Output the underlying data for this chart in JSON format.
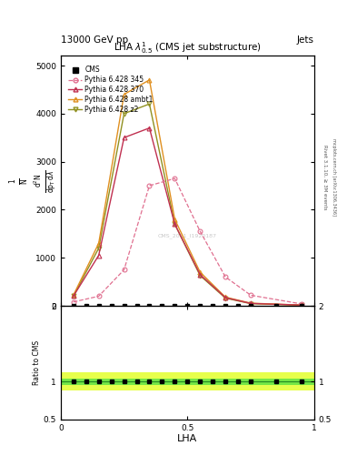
{
  "title": "LHA $\\lambda^{1}_{0.5}$ (CMS jet substructure)",
  "header_left": "13000 GeV pp",
  "header_right": "Jets",
  "xlabel": "LHA",
  "ylabel_main": "$\\mathrm{1/N}\\,\\mathrm{dN}/\\mathrm{dp_T}\\,\\mathrm{d}\\lambda$",
  "ylabel_ratio": "Ratio to CMS",
  "watermark": "CMS_2021_I1920187",
  "rivet_label": "Rivet 3.1.10, ≥ 3M events",
  "mcplots_label": "mcplots.cern.ch [arXiv:1306.3436]",
  "py345_x": [
    0.05,
    0.15,
    0.25,
    0.35,
    0.45,
    0.55,
    0.65,
    0.75,
    0.95
  ],
  "py345_y": [
    80,
    200,
    750,
    2500,
    2650,
    1550,
    600,
    220,
    40
  ],
  "py370_x": [
    0.05,
    0.15,
    0.25,
    0.35,
    0.45,
    0.55,
    0.65,
    0.75,
    0.95
  ],
  "py370_y": [
    200,
    1050,
    3500,
    3700,
    1700,
    650,
    170,
    50,
    15
  ],
  "pyambt1_x": [
    0.05,
    0.15,
    0.25,
    0.35,
    0.45,
    0.55,
    0.65,
    0.75,
    0.95
  ],
  "pyambt1_y": [
    220,
    1300,
    4400,
    4700,
    1800,
    700,
    180,
    55,
    15
  ],
  "pyz2_x": [
    0.05,
    0.15,
    0.25,
    0.35,
    0.45,
    0.55,
    0.65,
    0.75,
    0.95
  ],
  "pyz2_y": [
    200,
    1200,
    4000,
    4200,
    1700,
    630,
    160,
    45,
    12
  ],
  "cms_x": [
    0.05,
    0.1,
    0.15,
    0.2,
    0.25,
    0.3,
    0.35,
    0.4,
    0.45,
    0.5,
    0.55,
    0.6,
    0.65,
    0.7,
    0.75,
    0.85,
    0.95
  ],
  "color_345": "#e07090",
  "color_370": "#c03050",
  "color_ambt1": "#e09020",
  "color_z2": "#909020",
  "ratio_band_green": [
    0.96,
    1.04
  ],
  "ratio_band_yellow": [
    0.88,
    1.12
  ],
  "ratio_ylim": [
    0.5,
    2.0
  ],
  "ratio_yticks": [
    0.5,
    1.0,
    2.0
  ],
  "ratio_yticklabels": [
    "0.5",
    "1",
    "2"
  ],
  "main_ylim": [
    0,
    5200
  ],
  "main_yticks": [
    0,
    1000,
    2000,
    3000,
    4000,
    5000
  ],
  "main_yticklabels": [
    "0",
    "1000",
    "2000",
    "3000",
    "4000",
    "5000"
  ],
  "xlim": [
    0.0,
    1.0
  ],
  "xticks": [
    0.0,
    0.5,
    1.0
  ],
  "xticklabels": [
    "0",
    "0.5",
    "1"
  ]
}
